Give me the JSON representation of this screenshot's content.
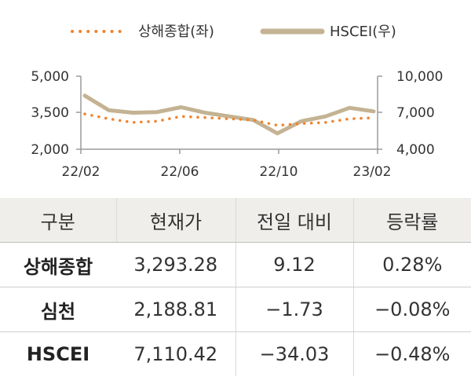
{
  "chart_data": {
    "type": "line",
    "legend": [
      {
        "name": "상해종합(좌)",
        "color": "#f0842c",
        "style": "dotted"
      },
      {
        "name": "HSCEI(우)",
        "color": "#c4b393",
        "style": "solid"
      }
    ],
    "x_tick_labels": [
      "22/02",
      "22/06",
      "22/10",
      "23/02"
    ],
    "y_left": {
      "ticks": [
        "5,000",
        "3,500",
        "2,000"
      ],
      "range": [
        2000,
        5000
      ]
    },
    "y_right": {
      "ticks": [
        "10,000",
        "7,000",
        "4,000"
      ],
      "range": [
        4000,
        10000
      ]
    },
    "series": [
      {
        "name": "상해종합(좌)",
        "axis": "left",
        "x": [
          "22/02",
          "22/03",
          "22/04",
          "22/05",
          "22/06",
          "22/07",
          "22/08",
          "22/09",
          "22/10",
          "22/11",
          "22/12",
          "23/01",
          "23/02"
        ],
        "values": [
          3450,
          3250,
          3100,
          3150,
          3350,
          3300,
          3250,
          3200,
          2980,
          3050,
          3100,
          3250,
          3290
        ]
      },
      {
        "name": "HSCEI(우)",
        "axis": "right",
        "x": [
          "22/02",
          "22/03",
          "22/04",
          "22/05",
          "22/06",
          "22/07",
          "22/08",
          "22/09",
          "22/10",
          "22/11",
          "22/12",
          "23/01",
          "23/02"
        ],
        "values": [
          8400,
          7200,
          7000,
          7050,
          7450,
          7000,
          6700,
          6400,
          5300,
          6300,
          6700,
          7400,
          7110
        ]
      }
    ]
  },
  "table": {
    "headers": [
      "구분",
      "현재가",
      "전일 대비",
      "등락률"
    ],
    "rows": [
      {
        "name": "상해종합",
        "price": "3,293.28",
        "change": "9.12",
        "rate": "0.28%"
      },
      {
        "name": "심천",
        "price": "2,188.81",
        "change": "−1.73",
        "rate": "−0.08%"
      },
      {
        "name": "HSCEI",
        "price": "7,110.42",
        "change": "−34.03",
        "rate": "−0.48%"
      }
    ]
  }
}
